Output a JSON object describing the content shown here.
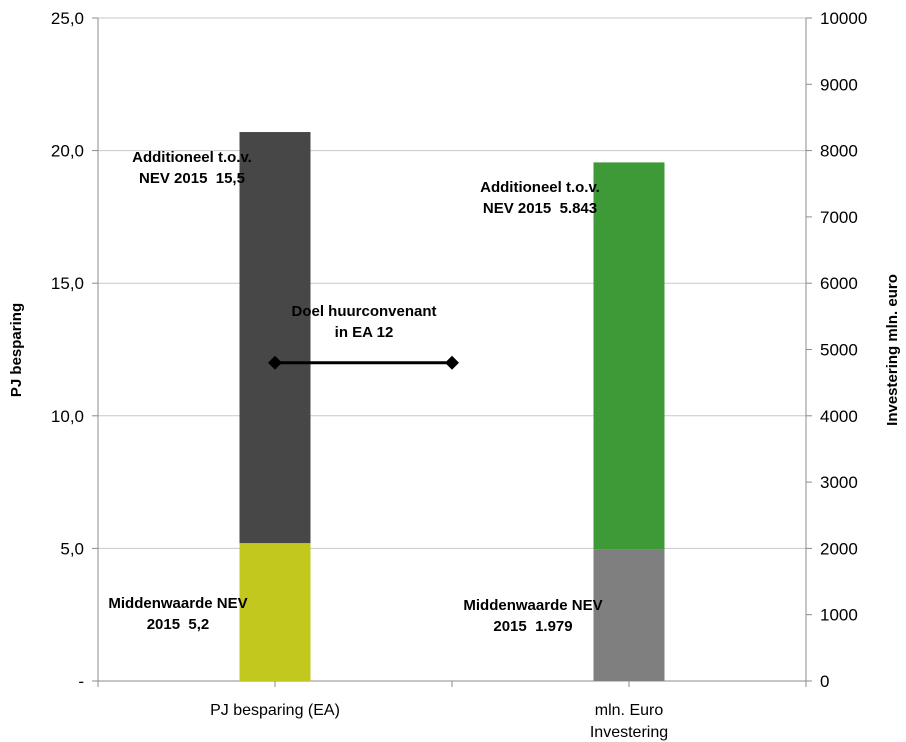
{
  "chart_data": {
    "type": "bar",
    "stacked": true,
    "categories": [
      "PJ besparing (EA)",
      "mln. Euro Investering"
    ],
    "category_lines": [
      [
        "PJ besparing (EA)"
      ],
      [
        "mln. Euro",
        "Investering"
      ]
    ],
    "left_axis": {
      "title": "PJ besparing",
      "range": [
        0,
        25
      ],
      "ticks": [
        0,
        5,
        10,
        15,
        20,
        25
      ],
      "tick_labels": [
        "-",
        "5,0",
        "10,0",
        "15,0",
        "20,0",
        "25,0"
      ]
    },
    "right_axis": {
      "title": "Investering mln. euro",
      "range": [
        0,
        10000
      ],
      "ticks": [
        0,
        1000,
        2000,
        3000,
        4000,
        5000,
        6000,
        7000,
        8000,
        9000,
        10000
      ],
      "tick_labels": [
        "0",
        "1000",
        "2000",
        "3000",
        "4000",
        "5000",
        "6000",
        "7000",
        "8000",
        "9000",
        "10000"
      ]
    },
    "bars": [
      {
        "category": "PJ besparing (EA)",
        "axis": "left",
        "segments": [
          {
            "value": 5.2,
            "color": "#c3c81e",
            "label_lines": [
              "Middenwaarde NEV",
              "2015  5,2"
            ]
          },
          {
            "value": 15.5,
            "color": "#474747",
            "label_lines": [
              "Additioneel t.o.v.",
              "NEV 2015  15,5"
            ]
          }
        ]
      },
      {
        "category": "mln. Euro Investering",
        "axis": "right",
        "segments": [
          {
            "value": 1979,
            "color": "#7f7f7f",
            "label_lines": [
              "Middenwaarde NEV",
              "2015  1.979"
            ]
          },
          {
            "value": 5843,
            "color": "#3d9a36",
            "label_lines": [
              "Additioneel t.o.v.",
              "NEV 2015  5.843"
            ]
          }
        ]
      }
    ],
    "target_line": {
      "label_lines": [
        "Doel huurconvenant",
        "in EA 12"
      ],
      "value": 12,
      "x_span": [
        0,
        1
      ],
      "color": "#000000"
    },
    "grid": true
  }
}
